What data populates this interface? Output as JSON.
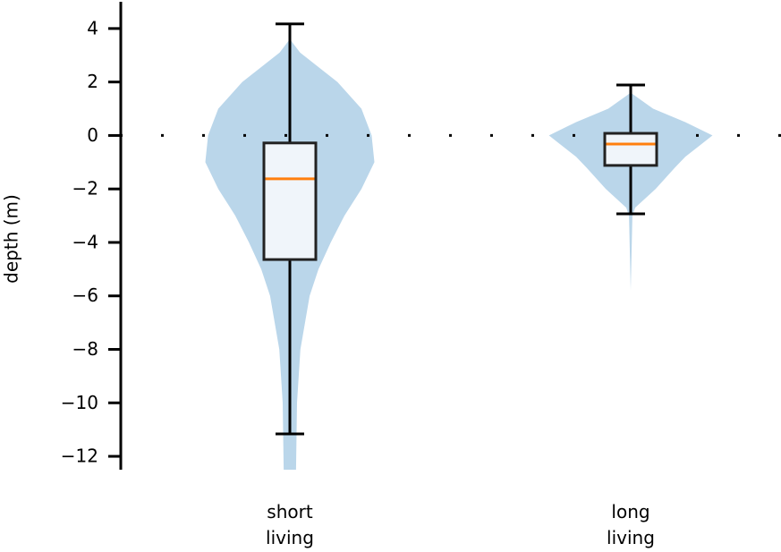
{
  "chart_data": {
    "type": "violin-box",
    "y_label": "depth (m)",
    "categories": [
      "short\nliving",
      "long\nliving"
    ],
    "ylim": [
      -12.5,
      5
    ],
    "yticks": [
      {
        "value": 4,
        "label": "4"
      },
      {
        "value": 2,
        "label": "2"
      },
      {
        "value": 0,
        "label": "0"
      },
      {
        "value": -2,
        "label": "−2"
      },
      {
        "value": -4,
        "label": "−4"
      },
      {
        "value": -6,
        "label": "−6"
      },
      {
        "value": -8,
        "label": "−8"
      },
      {
        "value": -10,
        "label": "−10"
      },
      {
        "value": -12,
        "label": "−12"
      }
    ],
    "hline": 0,
    "violin_color": "#bad6ea",
    "box_face": "#f0f5fa",
    "box_edge": "#222222",
    "median_color": "#ff7f0e",
    "whisker_color": "#000000",
    "violins": [
      {
        "y": [
          3.6,
          3.1,
          2,
          1,
          0,
          -1,
          -2,
          -3,
          -4,
          -5,
          -6,
          -8,
          -10,
          -12.5
        ],
        "width": [
          0,
          0.03,
          0.14,
          0.21,
          0.24,
          0.248,
          0.21,
          0.16,
          0.12,
          0.084,
          0.058,
          0.031,
          0.021,
          0.018
        ]
      },
      {
        "y": [
          1.6,
          1,
          0.5,
          0,
          -0.3,
          -0.8,
          -1.2,
          -2,
          -2.7,
          -3,
          -5.8
        ],
        "width": [
          0,
          0.066,
          0.16,
          0.24,
          0.21,
          0.16,
          0.13,
          0.073,
          0.013,
          0.005,
          0
        ]
      }
    ],
    "boxes": [
      {
        "whislo": -11.16,
        "q1": -4.64,
        "med": -1.62,
        "q3": -0.28,
        "whishi": 4.17
      },
      {
        "whislo": -2.93,
        "q1": -1.12,
        "med": -0.32,
        "q3": 0.08,
        "whishi": 1.89
      }
    ]
  }
}
